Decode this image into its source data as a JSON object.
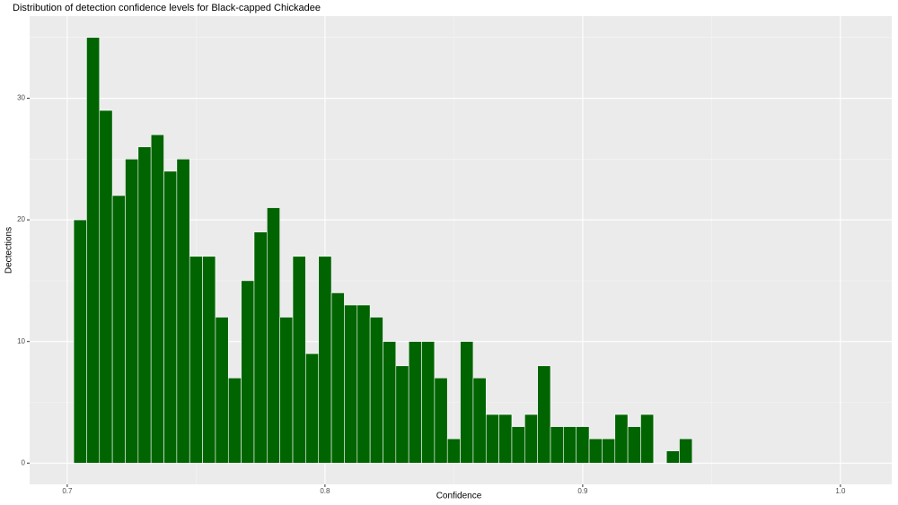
{
  "chart_data": {
    "type": "histogram",
    "title": "Distribution of detection confidence levels for Black-capped Chickadee",
    "x_label": "Confidence",
    "y_label": "Dectections",
    "bins": [
      0.7025,
      0.7075,
      0.7125,
      0.7175,
      0.7225,
      0.7275,
      0.7325,
      0.7375,
      0.7425,
      0.7475,
      0.7525,
      0.7575,
      0.7625,
      0.7675,
      0.7725,
      0.7775,
      0.7825,
      0.7875,
      0.7925,
      0.7975,
      0.8025,
      0.8075,
      0.8125,
      0.8175,
      0.8225,
      0.8275,
      0.8325,
      0.8375,
      0.8425,
      0.8475,
      0.8525,
      0.8575,
      0.8625,
      0.8675,
      0.8725,
      0.8775,
      0.8825,
      0.8875,
      0.8925,
      0.8975,
      0.9025,
      0.9075,
      0.9125,
      0.9175,
      0.9225,
      0.9275,
      0.9325,
      0.9375,
      0.9425
    ],
    "values": [
      20,
      35,
      29,
      22,
      25,
      26,
      27,
      24,
      25,
      17,
      17,
      12,
      7,
      15,
      19,
      21,
      12,
      17,
      9,
      17,
      14,
      13,
      13,
      12,
      10,
      8,
      10,
      10,
      7,
      2,
      10,
      7,
      4,
      4,
      3,
      4,
      8,
      3,
      3,
      3,
      2,
      2,
      4,
      3,
      4,
      0,
      1,
      2
    ],
    "color": "#006400",
    "xlim": [
      0.6854,
      1.0199
    ],
    "ylim": [
      -1.75,
      36.75
    ],
    "xticks": [
      0.7,
      0.8,
      0.9,
      {
        "value": 1,
        "label": "1.0"
      }
    ],
    "yticks": [
      0,
      10,
      20,
      30
    ],
    "grid": true
  }
}
